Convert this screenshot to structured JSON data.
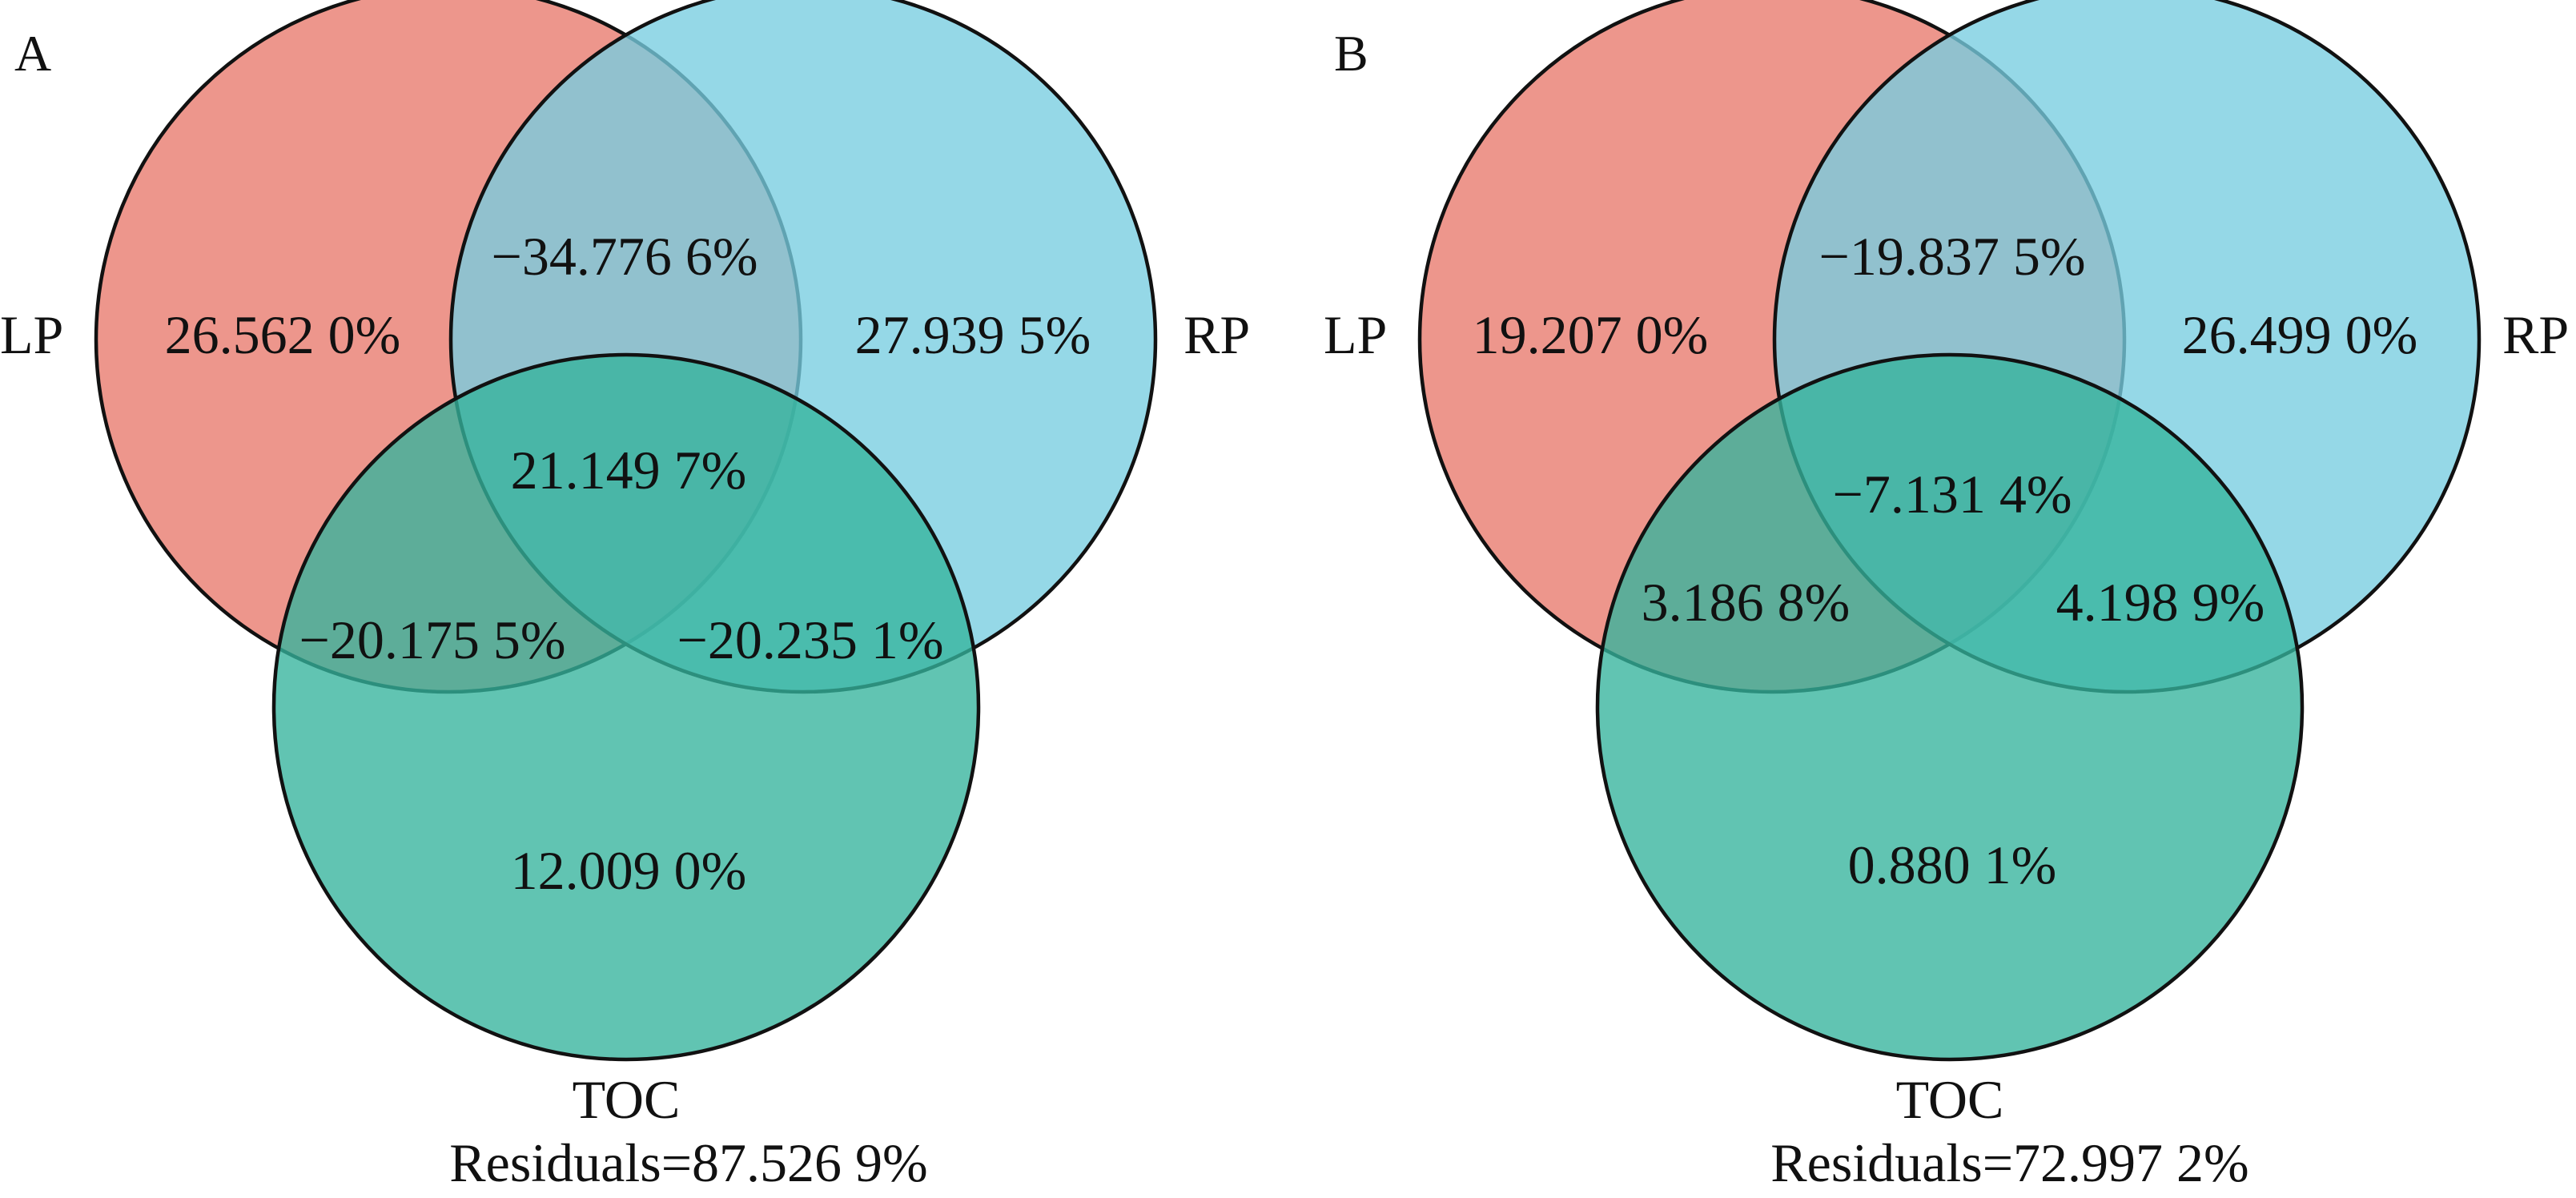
{
  "colors": {
    "LP": "#e8796b",
    "RP": "#77cde0",
    "TOC": "#35b39c",
    "outline": "#111111",
    "background": "#ffffff"
  },
  "panels": [
    {
      "letter": "A",
      "sets": {
        "LP": "LP",
        "RP": "RP",
        "TOC": "TOC"
      },
      "regions": {
        "lp_only": "26.562 0%",
        "rp_only": "27.939 5%",
        "toc_only": "12.009 0%",
        "lp_rp": "−34.776 6%",
        "lp_toc": "−20.175 5%",
        "rp_toc": "−20.235 1%",
        "all": "21.149 7%"
      },
      "residuals": "Residuals=87.526 9%"
    },
    {
      "letter": "B",
      "sets": {
        "LP": "LP",
        "RP": "RP",
        "TOC": "TOC"
      },
      "regions": {
        "lp_only": "19.207 0%",
        "rp_only": "26.499 0%",
        "toc_only": "0.880 1%",
        "lp_rp": "−19.837 5%",
        "lp_toc": "3.186 8%",
        "rp_toc": "4.198 9%",
        "all": "−7.131 4%"
      },
      "residuals": "Residuals=72.997 2%"
    }
  ]
}
